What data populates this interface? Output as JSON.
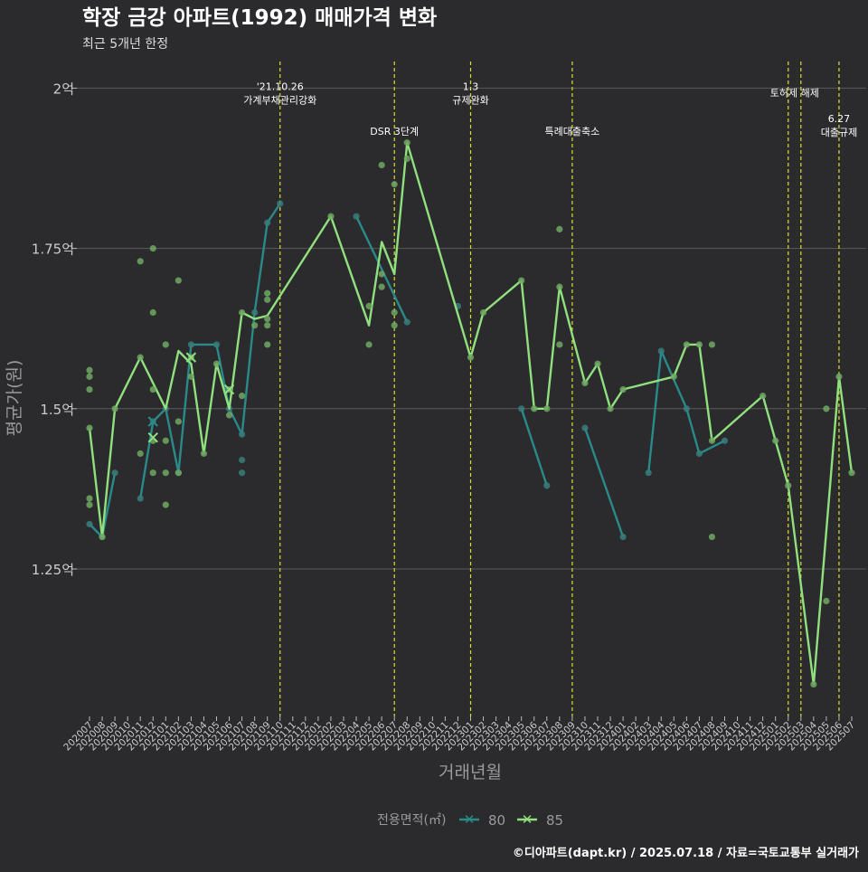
{
  "header": {
    "title": "학장 금강 아파트(1992) 매매가격 변화",
    "subtitle": "최근 5개년 한정"
  },
  "footer": {
    "credit": "©디아파트(dapt.kr) / 2025.07.18 / 자료=국토교통부 실거래가"
  },
  "colors": {
    "background": "#2b2b2d",
    "grid": "#5a5a5a",
    "s80": "#2a8a8a",
    "s85": "#90e07e",
    "s80_point": "#3a7c7c",
    "s85_point": "#6fa862",
    "event_line": "#d8e02a",
    "axis_text": "#cccccc"
  },
  "chart_data": {
    "type": "line",
    "xlabel": "거래년월",
    "ylabel": "평균가(원)",
    "ylim": [
      1.02,
      2.05
    ],
    "y_ticks": [
      {
        "value": 1.25,
        "label": "1.25억"
      },
      {
        "value": 1.5,
        "label": "1.5억"
      },
      {
        "value": 1.75,
        "label": "1.75억"
      },
      {
        "value": 2.0,
        "label": "2억"
      }
    ],
    "grid": true,
    "legend": {
      "title": "전용면적(㎡)",
      "position": "bottom",
      "items": [
        "80",
        "85"
      ]
    },
    "categories": [
      "202007",
      "202008",
      "202009",
      "202010",
      "202011",
      "202012",
      "202101",
      "202102",
      "202103",
      "202104",
      "202105",
      "202106",
      "202107",
      "202108",
      "202109",
      "202110",
      "202111",
      "202112",
      "202201",
      "202202",
      "202203",
      "202204",
      "202205",
      "202206",
      "202207",
      "202208",
      "202209",
      "202210",
      "202211",
      "202212",
      "202301",
      "202302",
      "202303",
      "202304",
      "202305",
      "202306",
      "202307",
      "202308",
      "202309",
      "202310",
      "202311",
      "202312",
      "202401",
      "202402",
      "202403",
      "202404",
      "202405",
      "202406",
      "202407",
      "202408",
      "202409",
      "202410",
      "202411",
      "202412",
      "202501",
      "202502",
      "202503",
      "202504",
      "202505",
      "202506",
      "202507"
    ],
    "series": [
      {
        "name": "80",
        "segments": [
          [
            [
              "202007",
              1.32
            ],
            [
              "202008",
              1.3
            ],
            [
              "202009",
              1.4
            ]
          ],
          [
            [
              "202011",
              1.36
            ],
            [
              "202012",
              1.48
            ],
            [
              "202101",
              1.5
            ],
            [
              "202102",
              1.4
            ],
            [
              "202103",
              1.6
            ],
            [
              "202105",
              1.6
            ],
            [
              "202106",
              1.5
            ],
            [
              "202107",
              1.46
            ],
            [
              "202108",
              1.65
            ],
            [
              "202109",
              1.79
            ],
            [
              "202110",
              1.82
            ]
          ],
          [
            [
              "202204",
              1.8
            ],
            [
              "202208",
              1.635
            ]
          ],
          [
            [
              "202305",
              1.5
            ],
            [
              "202307",
              1.38
            ]
          ],
          [
            [
              "202310",
              1.47
            ],
            [
              "202401",
              1.3
            ]
          ],
          [
            [
              "202403",
              1.4
            ],
            [
              "202404",
              1.59
            ],
            [
              "202406",
              1.5
            ],
            [
              "202407",
              1.43
            ],
            [
              "202409",
              1.45
            ]
          ]
        ],
        "points": [
          [
            "202007",
            1.32
          ],
          [
            "202008",
            1.3
          ],
          [
            "202009",
            1.4
          ],
          [
            "202011",
            1.36
          ],
          [
            "202012",
            1.48
          ],
          [
            "202101",
            1.5
          ],
          [
            "202102",
            1.4
          ],
          [
            "202103",
            1.6
          ],
          [
            "202105",
            1.6
          ],
          [
            "202106",
            1.5
          ],
          [
            "202107",
            1.46
          ],
          [
            "202107",
            1.42
          ],
          [
            "202107",
            1.4
          ],
          [
            "202108",
            1.65
          ],
          [
            "202109",
            1.79
          ],
          [
            "202110",
            1.82
          ],
          [
            "202204",
            1.8
          ],
          [
            "202208",
            1.635
          ],
          [
            "202212",
            1.66
          ],
          [
            "202305",
            1.5
          ],
          [
            "202307",
            1.38
          ],
          [
            "202310",
            1.47
          ],
          [
            "202401",
            1.3
          ],
          [
            "202403",
            1.4
          ],
          [
            "202404",
            1.59
          ],
          [
            "202406",
            1.5
          ],
          [
            "202407",
            1.43
          ],
          [
            "202409",
            1.45
          ]
        ]
      },
      {
        "name": "85",
        "segments": [
          [
            [
              "202007",
              1.47
            ],
            [
              "202008",
              1.3
            ],
            [
              "202009",
              1.5
            ],
            [
              "202011",
              1.58
            ],
            [
              "202101",
              1.5
            ],
            [
              "202102",
              1.59
            ],
            [
              "202103",
              1.57
            ],
            [
              "202104",
              1.43
            ],
            [
              "202105",
              1.57
            ],
            [
              "202106",
              1.5
            ],
            [
              "202107",
              1.65
            ],
            [
              "202108",
              1.64
            ],
            [
              "202109",
              1.645
            ],
            [
              "202202",
              1.8
            ],
            [
              "202205",
              1.63
            ],
            [
              "202206",
              1.76
            ],
            [
              "202207",
              1.71
            ],
            [
              "202208",
              1.915
            ],
            [
              "202301",
              1.58
            ],
            [
              "202302",
              1.65
            ],
            [
              "202305",
              1.7
            ],
            [
              "202306",
              1.5
            ],
            [
              "202307",
              1.5
            ],
            [
              "202308",
              1.69
            ],
            [
              "202310",
              1.54
            ],
            [
              "202311",
              1.57
            ],
            [
              "202312",
              1.5
            ],
            [
              "202401",
              1.53
            ],
            [
              "202405",
              1.55
            ],
            [
              "202406",
              1.6
            ],
            [
              "202407",
              1.6
            ],
            [
              "202408",
              1.45
            ],
            [
              "202412",
              1.52
            ],
            [
              "202501",
              1.45
            ],
            [
              "202502",
              1.38
            ],
            [
              "202504",
              1.07
            ],
            [
              "202506",
              1.55
            ],
            [
              "202507",
              1.4
            ]
          ]
        ],
        "points": [
          [
            "202007",
            1.56
          ],
          [
            "202007",
            1.55
          ],
          [
            "202007",
            1.53
          ],
          [
            "202007",
            1.47
          ],
          [
            "202007",
            1.36
          ],
          [
            "202007",
            1.35
          ],
          [
            "202008",
            1.3
          ],
          [
            "202009",
            1.5
          ],
          [
            "202011",
            1.73
          ],
          [
            "202011",
            1.58
          ],
          [
            "202011",
            1.43
          ],
          [
            "202012",
            1.75
          ],
          [
            "202012",
            1.65
          ],
          [
            "202012",
            1.53
          ],
          [
            "202012",
            1.45
          ],
          [
            "202012",
            1.4
          ],
          [
            "202101",
            1.6
          ],
          [
            "202101",
            1.45
          ],
          [
            "202101",
            1.4
          ],
          [
            "202101",
            1.35
          ],
          [
            "202102",
            1.7
          ],
          [
            "202102",
            1.48
          ],
          [
            "202102",
            1.4
          ],
          [
            "202103",
            1.55
          ],
          [
            "202103",
            1.58
          ],
          [
            "202104",
            1.43
          ],
          [
            "202105",
            1.57
          ],
          [
            "202106",
            1.49
          ],
          [
            "202106",
            1.53
          ],
          [
            "202107",
            1.65
          ],
          [
            "202107",
            1.52
          ],
          [
            "202108",
            1.63
          ],
          [
            "202109",
            1.68
          ],
          [
            "202109",
            1.67
          ],
          [
            "202109",
            1.64
          ],
          [
            "202109",
            1.63
          ],
          [
            "202109",
            1.6
          ],
          [
            "202202",
            1.8
          ],
          [
            "202205",
            1.66
          ],
          [
            "202205",
            1.6
          ],
          [
            "202206",
            1.88
          ],
          [
            "202206",
            1.71
          ],
          [
            "202206",
            1.69
          ],
          [
            "202207",
            1.85
          ],
          [
            "202207",
            1.65
          ],
          [
            "202207",
            1.63
          ],
          [
            "202208",
            1.915
          ],
          [
            "202208",
            1.89
          ],
          [
            "202301",
            1.58
          ],
          [
            "202302",
            1.65
          ],
          [
            "202305",
            1.7
          ],
          [
            "202306",
            1.5
          ],
          [
            "202307",
            1.5
          ],
          [
            "202308",
            1.78
          ],
          [
            "202308",
            1.69
          ],
          [
            "202308",
            1.6
          ],
          [
            "202310",
            1.54
          ],
          [
            "202311",
            1.57
          ],
          [
            "202312",
            1.5
          ],
          [
            "202401",
            1.53
          ],
          [
            "202405",
            1.55
          ],
          [
            "202406",
            1.6
          ],
          [
            "202407",
            1.6
          ],
          [
            "202408",
            1.6
          ],
          [
            "202408",
            1.45
          ],
          [
            "202408",
            1.3
          ],
          [
            "202412",
            1.52
          ],
          [
            "202501",
            1.45
          ],
          [
            "202502",
            1.38
          ],
          [
            "202504",
            1.07
          ],
          [
            "202505",
            1.5
          ],
          [
            "202505",
            1.2
          ],
          [
            "202506",
            1.55
          ],
          [
            "202507",
            1.4
          ]
        ]
      }
    ],
    "x_markers": [
      {
        "series": "80",
        "x": "202012",
        "y": 1.48
      },
      {
        "series": "85",
        "x": "202012",
        "y": 1.455
      },
      {
        "series": "85",
        "x": "202103",
        "y": 1.58
      },
      {
        "series": "85",
        "x": "202106",
        "y": 1.53
      }
    ],
    "annotations": [
      {
        "x": "202110",
        "lines": [
          "'21.10.26",
          "가계부채관리강화"
        ],
        "text_y": 2.0
      },
      {
        "x": "202207",
        "lines": [
          "DSR 3단계"
        ],
        "text_y": 1.93
      },
      {
        "x": "202301",
        "lines": [
          "1.3",
          "규제완화"
        ],
        "text_y": 2.0
      },
      {
        "x": "202309",
        "lines": [
          "특례대출축소"
        ],
        "text_y": 1.93
      },
      {
        "x": "202502",
        "lines": [
          "토허제 해제"
        ],
        "text_y": 1.99,
        "offset": 0.5
      },
      {
        "x": "202503",
        "lines": [],
        "text_y": 1.99
      },
      {
        "x": "202506",
        "lines": [
          "6.27",
          "대출규제"
        ],
        "text_y": 1.95
      }
    ]
  }
}
